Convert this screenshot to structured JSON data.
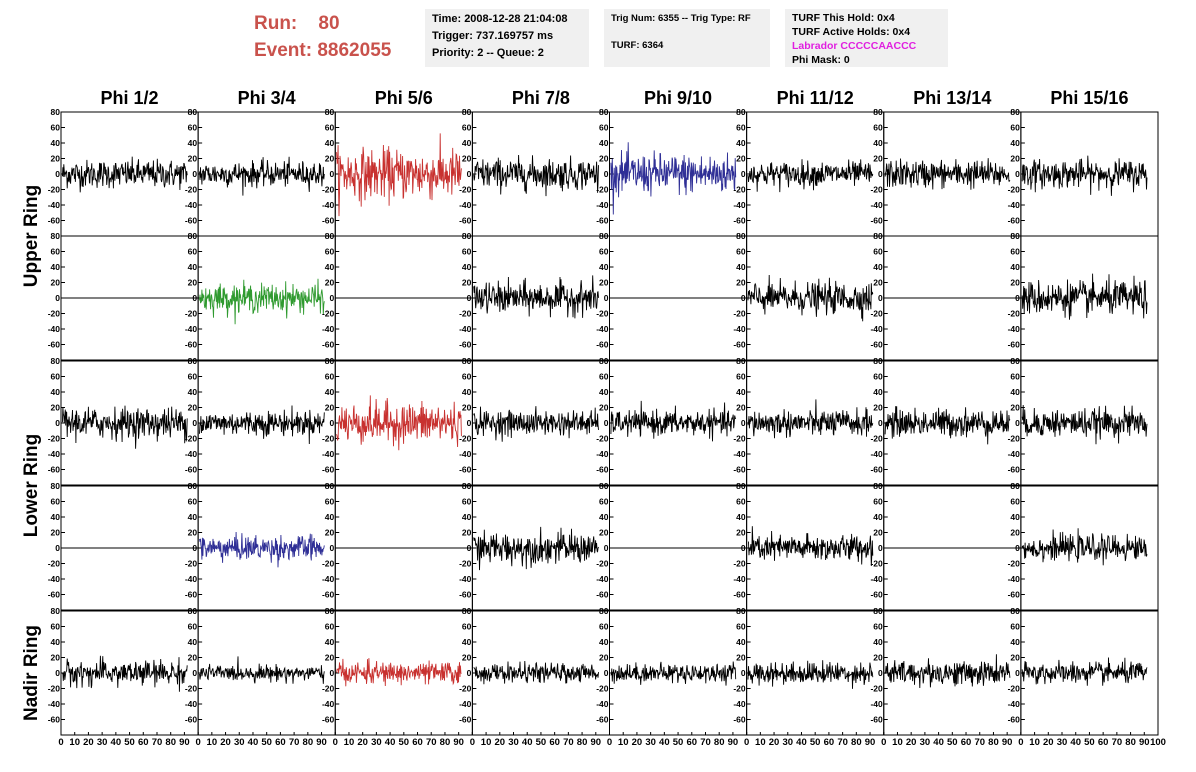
{
  "header": {
    "run_label": "Run:",
    "run_value": "80",
    "event_label": "Event:",
    "event_value": "8862055"
  },
  "info_time": {
    "time": "Time: 2008-12-28 21:04:08",
    "trigger": "Trigger: 737.169757 ms",
    "priority": "Priority: 2 -- Queue: 2"
  },
  "info_trig": {
    "trig": "Trig Num: 6355 -- Trig Type: RF",
    "turf": "TURF: 6364"
  },
  "info_turf": {
    "this_hold": "TURF This Hold: 0x4",
    "active_holds": "TURF Active Holds: 0x4",
    "labrador": "Labrador CCCCCAACCC",
    "phi_mask": "Phi Mask: 0"
  },
  "colors": {
    "default": "#000000",
    "red": "#c8312f",
    "blue": "#2f2f96",
    "green": "#2f9a2f",
    "header_red": "#c9524c",
    "magenta": "#e020e0",
    "info_bg": "#f0f0f0"
  },
  "chart_data": {
    "type": "line",
    "columns": [
      "Phi 1/2",
      "Phi 3/4",
      "Phi 5/6",
      "Phi 7/8",
      "Phi 9/10",
      "Phi 11/12",
      "Phi 13/14",
      "Phi 15/16"
    ],
    "ring_labels": [
      {
        "text": "Upper Ring",
        "rows": [
          0,
          1
        ]
      },
      {
        "text": "Lower Ring",
        "rows": [
          2,
          3
        ]
      },
      {
        "text": "Nadir Ring",
        "rows": [
          4,
          4
        ]
      }
    ],
    "xlim": [
      0,
      100
    ],
    "ylim": [
      -80,
      80
    ],
    "x_ticks": [
      "0",
      "10",
      "20",
      "30",
      "40",
      "50",
      "60",
      "70",
      "80",
      "90",
      "100"
    ],
    "y_ticks": [
      "-60",
      "-40",
      "-20",
      "0",
      "20",
      "40",
      "60",
      "80"
    ],
    "y_ticks_row0": [
      "-60",
      "-40",
      "-20",
      "0",
      "20",
      "40",
      "60",
      "80"
    ],
    "panels": [
      [
        "black",
        "black",
        "red",
        "black",
        "blue",
        "black",
        "black",
        "black"
      ],
      [
        "flat",
        "green",
        "flat",
        "black",
        "flat",
        "black",
        "flat",
        "black"
      ],
      [
        "black",
        "black",
        "red",
        "black",
        "black",
        "black",
        "black",
        "black"
      ],
      [
        "flat",
        "blue",
        "flat",
        "black",
        "flat",
        "black",
        "flat",
        "black"
      ],
      [
        "black",
        "black",
        "red",
        "black",
        "black",
        "black",
        "black",
        "black"
      ]
    ],
    "amplitudes": [
      [
        18,
        16,
        32,
        20,
        26,
        16,
        18,
        18
      ],
      [
        0,
        18,
        0,
        20,
        0,
        20,
        0,
        22
      ],
      [
        20,
        16,
        26,
        16,
        16,
        17,
        18,
        18
      ],
      [
        0,
        16,
        0,
        20,
        0,
        17,
        0,
        16
      ],
      [
        16,
        10,
        14,
        12,
        12,
        14,
        16,
        14
      ]
    ],
    "trace_x_range": [
      1,
      92
    ]
  }
}
